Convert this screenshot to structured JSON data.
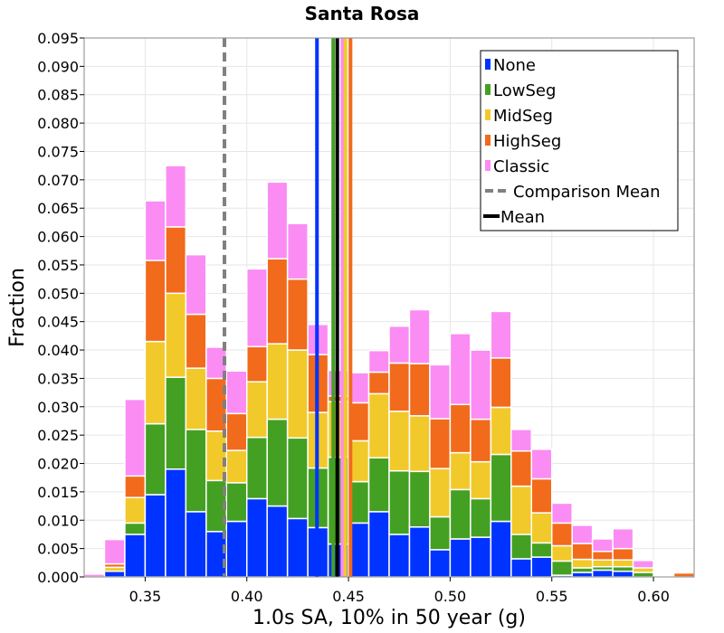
{
  "chart_data": {
    "type": "bar",
    "stacked": true,
    "title": "Santa Rosa",
    "xlabel": "1.0s SA, 10% in 50 year (g)",
    "ylabel": "Fraction",
    "xlim": [
      0.32,
      0.62
    ],
    "ylim": [
      0.0,
      0.095
    ],
    "bin_width": 0.01,
    "xticks": [
      "0.35",
      "0.40",
      "0.45",
      "0.50",
      "0.55",
      "0.60"
    ],
    "xtick_values": [
      0.35,
      0.4,
      0.45,
      0.5,
      0.55,
      0.6
    ],
    "yticks": [
      "0.000",
      "0.005",
      "0.010",
      "0.015",
      "0.020",
      "0.025",
      "0.030",
      "0.035",
      "0.040",
      "0.045",
      "0.050",
      "0.055",
      "0.060",
      "0.065",
      "0.070",
      "0.075",
      "0.080",
      "0.085",
      "0.090",
      "0.095"
    ],
    "ytick_values": [
      0.0,
      0.005,
      0.01,
      0.015,
      0.02,
      0.025,
      0.03,
      0.035,
      0.04,
      0.045,
      0.05,
      0.055,
      0.06,
      0.065,
      0.07,
      0.075,
      0.08,
      0.085,
      0.09,
      0.095
    ],
    "grid": true,
    "legend_position": "top-right",
    "bin_centers": [
      0.325,
      0.335,
      0.345,
      0.355,
      0.365,
      0.375,
      0.385,
      0.395,
      0.405,
      0.415,
      0.425,
      0.435,
      0.445,
      0.455,
      0.465,
      0.475,
      0.485,
      0.495,
      0.505,
      0.515,
      0.525,
      0.535,
      0.545,
      0.555,
      0.565,
      0.575,
      0.585,
      0.595,
      0.605,
      0.615
    ],
    "series": [
      {
        "name": "None",
        "color": "#0033ff",
        "values": [
          0.0,
          0.001,
          0.0075,
          0.0145,
          0.019,
          0.0115,
          0.008,
          0.0098,
          0.0138,
          0.0125,
          0.0103,
          0.0087,
          0.0058,
          0.0095,
          0.0115,
          0.0075,
          0.0088,
          0.0048,
          0.0067,
          0.007,
          0.0098,
          0.0032,
          0.0035,
          0.0003,
          0.0008,
          0.0012,
          0.001,
          0.0,
          0.0,
          0.0
        ]
      },
      {
        "name": "LowSeg",
        "color": "#44a022",
        "values": [
          0.0,
          0.0,
          0.002,
          0.0125,
          0.0162,
          0.0145,
          0.009,
          0.0068,
          0.0108,
          0.0153,
          0.0142,
          0.0105,
          0.0153,
          0.0073,
          0.0095,
          0.0112,
          0.0098,
          0.0058,
          0.0087,
          0.0068,
          0.0118,
          0.0043,
          0.0025,
          0.0025,
          0.0008,
          0.0006,
          0.0008,
          0.0008,
          0.0,
          0.0
        ]
      },
      {
        "name": "MidSeg",
        "color": "#f2c92a",
        "values": [
          0.0,
          0.0007,
          0.0045,
          0.0145,
          0.0148,
          0.0108,
          0.0087,
          0.0057,
          0.0098,
          0.0133,
          0.0155,
          0.0098,
          0.0098,
          0.0072,
          0.0113,
          0.0105,
          0.0098,
          0.0085,
          0.0065,
          0.0065,
          0.0083,
          0.0085,
          0.0053,
          0.0027,
          0.0015,
          0.0012,
          0.0012,
          0.0008,
          0.0,
          0.0
        ]
      },
      {
        "name": "HighSeg",
        "color": "#f26a1b",
        "values": [
          0.0,
          0.0006,
          0.0038,
          0.0143,
          0.0117,
          0.0095,
          0.0093,
          0.0065,
          0.0062,
          0.015,
          0.0125,
          0.0102,
          0.001,
          0.0067,
          0.0038,
          0.0085,
          0.0092,
          0.0088,
          0.0085,
          0.0075,
          0.0087,
          0.0062,
          0.006,
          0.004,
          0.0028,
          0.0015,
          0.002,
          0.0,
          0.0,
          0.0007
        ]
      },
      {
        "name": "Classic",
        "color": "#fb8cf4",
        "values": [
          0.0005,
          0.0043,
          0.0135,
          0.0105,
          0.0108,
          0.0105,
          0.0055,
          0.0075,
          0.0137,
          0.0135,
          0.0098,
          0.0053,
          0.0045,
          0.0053,
          0.0038,
          0.0065,
          0.0095,
          0.0095,
          0.0125,
          0.0122,
          0.0082,
          0.0038,
          0.0052,
          0.0035,
          0.0032,
          0.0022,
          0.0035,
          0.0013,
          0.0002,
          0.0
        ]
      }
    ],
    "vertical_lines": [
      {
        "name": "Comparison Mean",
        "x": 0.389,
        "color": "#808080",
        "style": "dashed"
      },
      {
        "name": "None",
        "x": 0.4345,
        "color": "#0033ff",
        "style": "solid"
      },
      {
        "name": "LowSeg",
        "x": 0.4425,
        "color": "#44a022",
        "style": "solid"
      },
      {
        "name": "Classic",
        "x": 0.447,
        "color": "#fb8cf4",
        "style": "solid"
      },
      {
        "name": "MidSeg",
        "x": 0.4485,
        "color": "#f2c92a",
        "style": "solid"
      },
      {
        "name": "HighSeg",
        "x": 0.451,
        "color": "#f26a1b",
        "style": "solid"
      },
      {
        "name": "Mean",
        "x": 0.4445,
        "color": "#000000",
        "style": "solid"
      }
    ],
    "legend": [
      {
        "label": "None",
        "color": "#0033ff",
        "kind": "patch"
      },
      {
        "label": "LowSeg",
        "color": "#44a022",
        "kind": "patch"
      },
      {
        "label": "MidSeg",
        "color": "#f2c92a",
        "kind": "patch"
      },
      {
        "label": "HighSeg",
        "color": "#f26a1b",
        "kind": "patch"
      },
      {
        "label": "Classic",
        "color": "#fb8cf4",
        "kind": "patch"
      },
      {
        "label": "Comparison Mean",
        "color": "#808080",
        "kind": "dashed"
      },
      {
        "label": "Mean",
        "color": "#000000",
        "kind": "solid"
      }
    ]
  }
}
